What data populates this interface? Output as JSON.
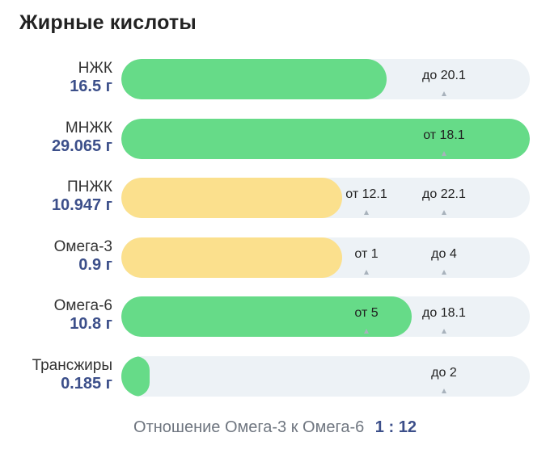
{
  "title": "Жирные кислоты",
  "colors": {
    "green": "#66db88",
    "yellow": "#fbe08d",
    "track": "#edf2f6",
    "amount": "#3c4f8a"
  },
  "rows": [
    {
      "name": "НЖК",
      "amount": "16.5 г",
      "fill_fraction": 0.65,
      "color": "green",
      "markers": [
        {
          "text": "до 20.1",
          "pos": 0.79
        }
      ]
    },
    {
      "name": "МНЖК",
      "amount": "29.065 г",
      "fill_fraction": 1.0,
      "color": "green",
      "markers": [
        {
          "text": "от 18.1",
          "pos": 0.79
        }
      ]
    },
    {
      "name": "ПНЖК",
      "amount": "10.947 г",
      "fill_fraction": 0.54,
      "color": "yellow",
      "markers": [
        {
          "text": "от 12.1",
          "pos": 0.6
        },
        {
          "text": "до 22.1",
          "pos": 0.79
        }
      ]
    },
    {
      "name": "Омега-3",
      "amount": "0.9 г",
      "fill_fraction": 0.54,
      "color": "yellow",
      "markers": [
        {
          "text": "от 1",
          "pos": 0.6
        },
        {
          "text": "до 4",
          "pos": 0.79
        }
      ]
    },
    {
      "name": "Омега-6",
      "amount": "10.8 г",
      "fill_fraction": 0.71,
      "color": "green",
      "markers": [
        {
          "text": "от 5",
          "pos": 0.6
        },
        {
          "text": "до 18.1",
          "pos": 0.79
        }
      ]
    },
    {
      "name": "Трансжиры",
      "amount": "0.185 г",
      "fill_fraction": 0.07,
      "color": "green",
      "markers": [
        {
          "text": "до 2",
          "pos": 0.79
        }
      ]
    }
  ],
  "ratio": {
    "label": "Отношение Омега-3 к Омега-6",
    "value": "1 : 12"
  }
}
